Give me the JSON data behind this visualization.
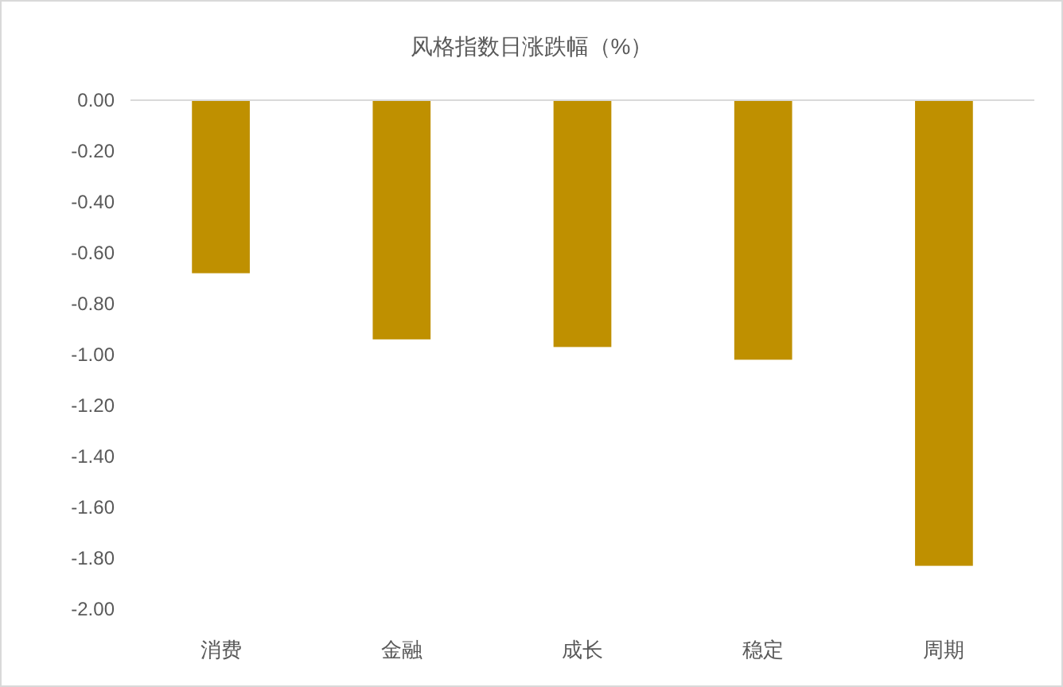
{
  "chart_data": {
    "type": "bar",
    "title": "风格指数日涨跌幅（%）",
    "categories": [
      "消费",
      "金融",
      "成长",
      "稳定",
      "周期"
    ],
    "values": [
      -0.68,
      -0.94,
      -0.97,
      -1.02,
      -1.83
    ],
    "color": "#bf9000",
    "ylim": [
      -2,
      0
    ],
    "yticks": [
      {
        "value": 0,
        "label": "0.00"
      },
      {
        "value": -0.2,
        "label": "-0.20"
      },
      {
        "value": -0.4,
        "label": "-0.40"
      },
      {
        "value": -0.6,
        "label": "-0.60"
      },
      {
        "value": -0.8,
        "label": "-0.80"
      },
      {
        "value": -1,
        "label": "-1.00"
      },
      {
        "value": -1.2,
        "label": "-1.20"
      },
      {
        "value": -1.4,
        "label": "-1.40"
      },
      {
        "value": -1.6,
        "label": "-1.60"
      },
      {
        "value": -1.8,
        "label": "-1.80"
      },
      {
        "value": -2,
        "label": "-2.00"
      }
    ]
  }
}
